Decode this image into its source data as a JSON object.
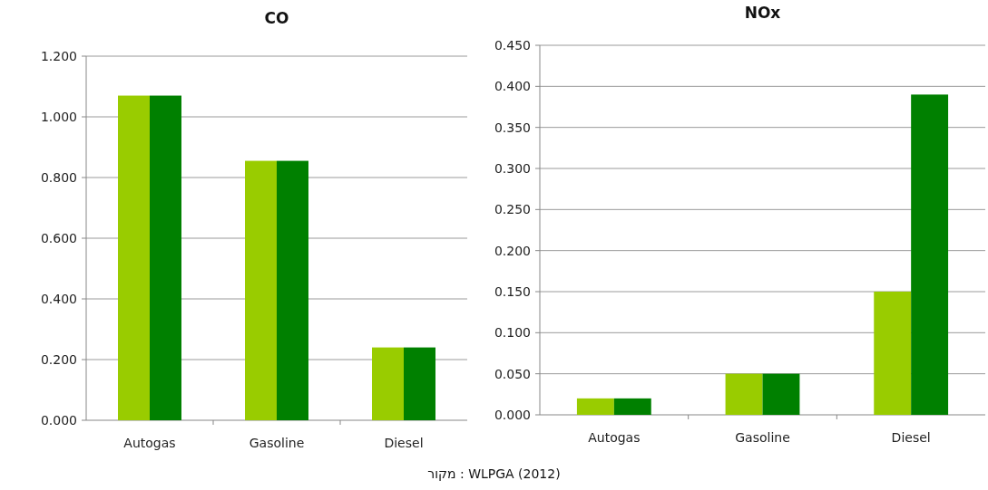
{
  "chart_data": [
    {
      "type": "bar",
      "title": "CO",
      "categories": [
        "Autogas",
        "Gasoline",
        "Diesel"
      ],
      "series": [
        {
          "color": "#99cc00",
          "values": [
            1.07,
            0.855,
            0.24
          ]
        },
        {
          "color": "#008000",
          "values": [
            1.07,
            0.855,
            0.24
          ]
        }
      ],
      "ylim": [
        0,
        1.2
      ],
      "yticks": [
        {
          "value": 0,
          "label": "0.000"
        },
        {
          "value": 0.2,
          "label": "0.200"
        },
        {
          "value": 0.4,
          "label": "0.400"
        },
        {
          "value": 0.6,
          "label": "0.600"
        },
        {
          "value": 0.8,
          "label": "0.800"
        },
        {
          "value": 1.0,
          "label": "1.000"
        },
        {
          "value": 1.2,
          "label": "1.200"
        }
      ],
      "grid": "y"
    },
    {
      "type": "bar",
      "title": "NOx",
      "categories": [
        "Autogas",
        "Gasoline",
        "Diesel"
      ],
      "series": [
        {
          "color": "#99cc00",
          "values": [
            0.02,
            0.05,
            0.15
          ]
        },
        {
          "color": "#008000",
          "values": [
            0.02,
            0.05,
            0.39
          ]
        }
      ],
      "ylim": [
        0,
        0.45
      ],
      "yticks": [
        {
          "value": 0,
          "label": "0.000"
        },
        {
          "value": 0.05,
          "label": "0.050"
        },
        {
          "value": 0.1,
          "label": "0.100"
        },
        {
          "value": 0.15,
          "label": "0.150"
        },
        {
          "value": 0.2,
          "label": "0.200"
        },
        {
          "value": 0.25,
          "label": "0.250"
        },
        {
          "value": 0.3,
          "label": "0.300"
        },
        {
          "value": 0.35,
          "label": "0.350"
        },
        {
          "value": 0.4,
          "label": "0.400"
        },
        {
          "value": 0.45,
          "label": "0.450"
        }
      ],
      "grid": "y",
      "annotations": [
        "מקור : WLPGA (2012)"
      ]
    }
  ]
}
